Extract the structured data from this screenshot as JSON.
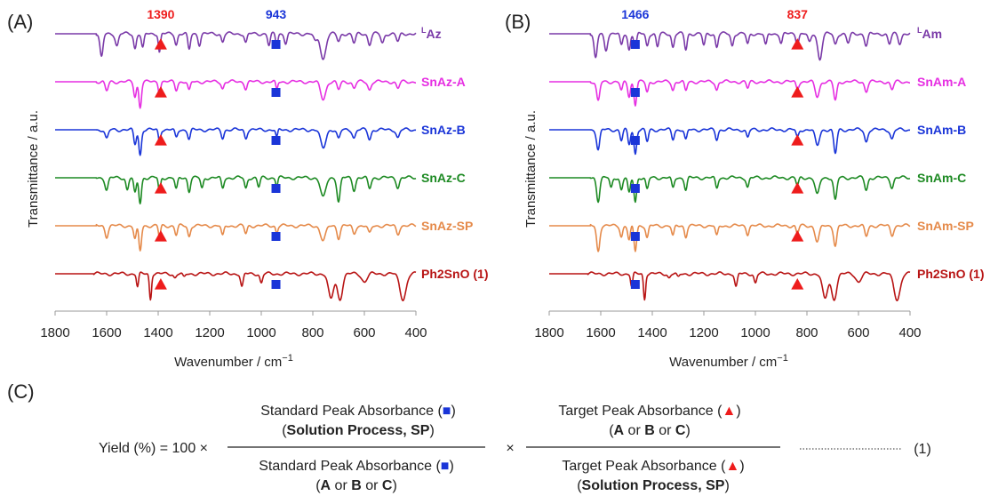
{
  "chart_data": [
    {
      "type": "line",
      "panel_label": "(A)",
      "xlabel_prefix": "Wavenumber / cm",
      "xlabel_sup": "−1",
      "ylabel": "Transmittance / a.u.",
      "xlim": [
        1800,
        400
      ],
      "xticks": [
        "1800",
        "1600",
        "1400",
        "1200",
        "1000",
        "800",
        "600",
        "400"
      ],
      "markers": [
        {
          "label": "1390",
          "x": 1390,
          "symbol": "triangle",
          "color": "#ee1c1c"
        },
        {
          "label": "943",
          "x": 943,
          "symbol": "square",
          "color": "#1a35d8"
        }
      ],
      "series": [
        {
          "name": "Az",
          "name_sup": "L",
          "color": "#7a3aa8",
          "start": 1640,
          "peaks": [
            [
              1620,
              0.9,
              6
            ],
            [
              1560,
              0.45,
              6
            ],
            [
              1490,
              0.55,
              5
            ],
            [
              1460,
              0.55,
              5
            ],
            [
              1395,
              0.7,
              4
            ],
            [
              1330,
              0.4,
              5
            ],
            [
              1280,
              0.6,
              5
            ],
            [
              1240,
              0.4,
              5
            ],
            [
              1150,
              0.3,
              5
            ],
            [
              1060,
              0.35,
              5
            ],
            [
              970,
              0.45,
              5
            ],
            [
              940,
              0.5,
              4
            ],
            [
              905,
              0.35,
              5
            ],
            [
              790,
              0.3,
              7
            ],
            [
              760,
              0.95,
              10
            ],
            [
              700,
              0.3,
              6
            ],
            [
              640,
              0.35,
              6
            ],
            [
              580,
              0.4,
              6
            ],
            [
              530,
              0.35,
              6
            ],
            [
              470,
              0.3,
              6
            ]
          ]
        },
        {
          "name": "SnAz-A",
          "color": "#e62fe2",
          "start": 1640,
          "peaks": [
            [
              1600,
              0.35,
              6
            ],
            [
              1490,
              0.55,
              5
            ],
            [
              1470,
              0.95,
              5
            ],
            [
              1395,
              0.45,
              4
            ],
            [
              1330,
              0.3,
              5
            ],
            [
              1280,
              0.35,
              5
            ],
            [
              1150,
              0.25,
              5
            ],
            [
              1060,
              0.25,
              5
            ],
            [
              940,
              0.3,
              4
            ],
            [
              760,
              0.65,
              10
            ],
            [
              700,
              0.3,
              6
            ],
            [
              640,
              0.25,
              6
            ],
            [
              580,
              0.3,
              6
            ],
            [
              470,
              0.25,
              6
            ]
          ]
        },
        {
          "name": "SnAz-B",
          "color": "#1a35d8",
          "start": 1640,
          "peaks": [
            [
              1600,
              0.35,
              6
            ],
            [
              1490,
              0.55,
              5
            ],
            [
              1470,
              0.95,
              5
            ],
            [
              1395,
              0.45,
              4
            ],
            [
              1330,
              0.3,
              5
            ],
            [
              1280,
              0.35,
              5
            ],
            [
              1150,
              0.3,
              5
            ],
            [
              1060,
              0.3,
              5
            ],
            [
              940,
              0.3,
              4
            ],
            [
              760,
              0.7,
              10
            ],
            [
              700,
              0.35,
              6
            ],
            [
              640,
              0.3,
              6
            ],
            [
              580,
              0.35,
              6
            ],
            [
              470,
              0.3,
              6
            ]
          ]
        },
        {
          "name": "SnAz-C",
          "color": "#1d8a23",
          "start": 1640,
          "peaks": [
            [
              1600,
              0.45,
              6
            ],
            [
              1520,
              0.45,
              5
            ],
            [
              1490,
              0.6,
              5
            ],
            [
              1470,
              0.95,
              5
            ],
            [
              1395,
              0.6,
              4
            ],
            [
              1330,
              0.45,
              5
            ],
            [
              1280,
              0.5,
              5
            ],
            [
              1230,
              0.4,
              5
            ],
            [
              1150,
              0.4,
              5
            ],
            [
              1060,
              0.4,
              5
            ],
            [
              1010,
              0.35,
              5
            ],
            [
              940,
              0.3,
              4
            ],
            [
              760,
              0.75,
              10
            ],
            [
              700,
              0.9,
              6
            ],
            [
              640,
              0.45,
              6
            ],
            [
              580,
              0.4,
              6
            ],
            [
              470,
              0.35,
              6
            ]
          ]
        },
        {
          "name": "SnAz-SP",
          "color": "#e58a4a",
          "start": 1640,
          "peaks": [
            [
              1600,
              0.4,
              6
            ],
            [
              1490,
              0.5,
              5
            ],
            [
              1470,
              0.95,
              5
            ],
            [
              1395,
              0.45,
              4
            ],
            [
              1330,
              0.35,
              5
            ],
            [
              1280,
              0.4,
              5
            ],
            [
              1150,
              0.4,
              5
            ],
            [
              1060,
              0.3,
              5
            ],
            [
              940,
              0.25,
              4
            ],
            [
              760,
              0.55,
              10
            ],
            [
              700,
              0.45,
              6
            ],
            [
              640,
              0.3,
              6
            ],
            [
              580,
              0.3,
              6
            ],
            [
              470,
              0.3,
              6
            ]
          ]
        },
        {
          "name": "Ph2SnO (",
          "name_num": "1",
          "name_close": ")",
          "color": "#b81414",
          "start": 1650,
          "peaks": [
            [
              1480,
              0.5,
              4
            ],
            [
              1430,
              0.95,
              4
            ],
            [
              1335,
              0.15,
              5
            ],
            [
              1300,
              0.15,
              5
            ],
            [
              1075,
              0.5,
              5
            ],
            [
              1000,
              0.35,
              5
            ],
            [
              730,
              0.95,
              10
            ],
            [
              695,
              0.95,
              10
            ],
            [
              600,
              0.3,
              10
            ],
            [
              450,
              0.95,
              12
            ]
          ]
        }
      ]
    },
    {
      "type": "line",
      "panel_label": "(B)",
      "xlabel_prefix": "Wavenumber / cm",
      "xlabel_sup": "−1",
      "ylabel": "Transmittance / a.u.",
      "xlim": [
        1800,
        400
      ],
      "xticks": [
        "1800",
        "1600",
        "1400",
        "1200",
        "1000",
        "800",
        "600",
        "400"
      ],
      "markers": [
        {
          "label": "1466",
          "x": 1466,
          "symbol": "square",
          "color": "#1a35d8"
        },
        {
          "label": "837",
          "x": 837,
          "symbol": "triangle",
          "color": "#ee1c1c"
        }
      ],
      "series": [
        {
          "name": "Am",
          "name_sup": "L",
          "color": "#7a3aa8",
          "start": 1640,
          "peaks": [
            [
              1620,
              0.95,
              6
            ],
            [
              1580,
              0.6,
              6
            ],
            [
              1520,
              0.45,
              5
            ],
            [
              1490,
              0.6,
              5
            ],
            [
              1466,
              0.55,
              5
            ],
            [
              1420,
              0.45,
              5
            ],
            [
              1380,
              0.5,
              5
            ],
            [
              1320,
              0.5,
              5
            ],
            [
              1270,
              0.6,
              5
            ],
            [
              1200,
              0.45,
              5
            ],
            [
              1150,
              0.5,
              5
            ],
            [
              1090,
              0.45,
              5
            ],
            [
              1030,
              0.4,
              5
            ],
            [
              960,
              0.45,
              5
            ],
            [
              900,
              0.35,
              5
            ],
            [
              837,
              0.4,
              5
            ],
            [
              790,
              0.35,
              6
            ],
            [
              750,
              0.95,
              8
            ],
            [
              690,
              0.4,
              6
            ],
            [
              640,
              0.35,
              6
            ],
            [
              570,
              0.45,
              6
            ],
            [
              480,
              0.4,
              6
            ],
            [
              440,
              0.35,
              6
            ]
          ]
        },
        {
          "name": "SnAm-A",
          "color": "#e62fe2",
          "start": 1640,
          "peaks": [
            [
              1610,
              0.75,
              6
            ],
            [
              1520,
              0.35,
              5
            ],
            [
              1490,
              0.55,
              5
            ],
            [
              1466,
              0.85,
              5
            ],
            [
              1420,
              0.4,
              5
            ],
            [
              1320,
              0.3,
              5
            ],
            [
              1270,
              0.35,
              5
            ],
            [
              1150,
              0.3,
              5
            ],
            [
              1030,
              0.25,
              5
            ],
            [
              837,
              0.25,
              5
            ],
            [
              760,
              0.55,
              8
            ],
            [
              690,
              0.7,
              6
            ],
            [
              570,
              0.35,
              6
            ],
            [
              470,
              0.3,
              6
            ]
          ]
        },
        {
          "name": "SnAm-B",
          "color": "#1a35d8",
          "start": 1640,
          "peaks": [
            [
              1610,
              0.75,
              6
            ],
            [
              1520,
              0.4,
              5
            ],
            [
              1490,
              0.55,
              5
            ],
            [
              1466,
              0.9,
              5
            ],
            [
              1420,
              0.45,
              5
            ],
            [
              1320,
              0.35,
              5
            ],
            [
              1270,
              0.4,
              5
            ],
            [
              1150,
              0.35,
              5
            ],
            [
              1030,
              0.3,
              5
            ],
            [
              837,
              0.3,
              5
            ],
            [
              760,
              0.6,
              8
            ],
            [
              690,
              0.9,
              6
            ],
            [
              570,
              0.45,
              6
            ],
            [
              470,
              0.35,
              6
            ]
          ]
        },
        {
          "name": "SnAm-C",
          "color": "#1d8a23",
          "start": 1640,
          "peaks": [
            [
              1610,
              0.85,
              6
            ],
            [
              1560,
              0.4,
              5
            ],
            [
              1520,
              0.45,
              5
            ],
            [
              1490,
              0.6,
              5
            ],
            [
              1466,
              0.9,
              5
            ],
            [
              1420,
              0.45,
              5
            ],
            [
              1320,
              0.4,
              5
            ],
            [
              1270,
              0.45,
              5
            ],
            [
              1150,
              0.4,
              5
            ],
            [
              1030,
              0.35,
              5
            ],
            [
              837,
              0.3,
              5
            ],
            [
              760,
              0.65,
              8
            ],
            [
              690,
              0.85,
              6
            ],
            [
              570,
              0.45,
              6
            ],
            [
              470,
              0.35,
              6
            ]
          ]
        },
        {
          "name": "SnAm-SP",
          "color": "#e58a4a",
          "start": 1640,
          "peaks": [
            [
              1610,
              0.95,
              6
            ],
            [
              1520,
              0.4,
              5
            ],
            [
              1490,
              0.55,
              5
            ],
            [
              1466,
              0.95,
              5
            ],
            [
              1420,
              0.45,
              5
            ],
            [
              1320,
              0.4,
              5
            ],
            [
              1270,
              0.4,
              5
            ],
            [
              1150,
              0.4,
              5
            ],
            [
              1030,
              0.3,
              5
            ],
            [
              837,
              0.3,
              5
            ],
            [
              760,
              0.6,
              8
            ],
            [
              690,
              0.75,
              6
            ],
            [
              570,
              0.4,
              6
            ],
            [
              470,
              0.35,
              6
            ]
          ]
        },
        {
          "name": "Ph2SnO (",
          "name_num": "1",
          "name_close": ")",
          "color": "#b81414",
          "start": 1650,
          "peaks": [
            [
              1480,
              0.5,
              4
            ],
            [
              1430,
              0.95,
              4
            ],
            [
              1335,
              0.15,
              5
            ],
            [
              1300,
              0.15,
              5
            ],
            [
              1075,
              0.5,
              5
            ],
            [
              1000,
              0.35,
              5
            ],
            [
              730,
              0.95,
              10
            ],
            [
              695,
              0.95,
              10
            ],
            [
              600,
              0.3,
              10
            ],
            [
              450,
              0.95,
              12
            ]
          ]
        }
      ]
    }
  ],
  "equation": {
    "panel_label": "(C)",
    "lhs": "Yield (%) = 100 ×",
    "frac1_num": [
      "Standard Peak Absorbance (",
      ")"
    ],
    "frac1_num_sub": [
      "(",
      "Solution Process, SP",
      ")"
    ],
    "frac1_den": [
      "Standard Peak Absorbance (",
      ")"
    ],
    "frac1_den_sub": [
      "(",
      "A",
      " or ",
      "B",
      " or ",
      "C",
      ")"
    ],
    "times": "×",
    "frac2_num": [
      "Target Peak Absorbance (",
      ")"
    ],
    "frac2_num_sub": [
      "(",
      "A",
      " or ",
      "B",
      " or ",
      "C",
      ")"
    ],
    "frac2_den": [
      "Target Peak Absorbance (",
      ")"
    ],
    "frac2_den_sub": [
      "(",
      "Solution Process, SP",
      ")"
    ],
    "eq_number": "(1)",
    "square_color": "#1a35d8",
    "triangle_color": "#ee1c1c"
  }
}
